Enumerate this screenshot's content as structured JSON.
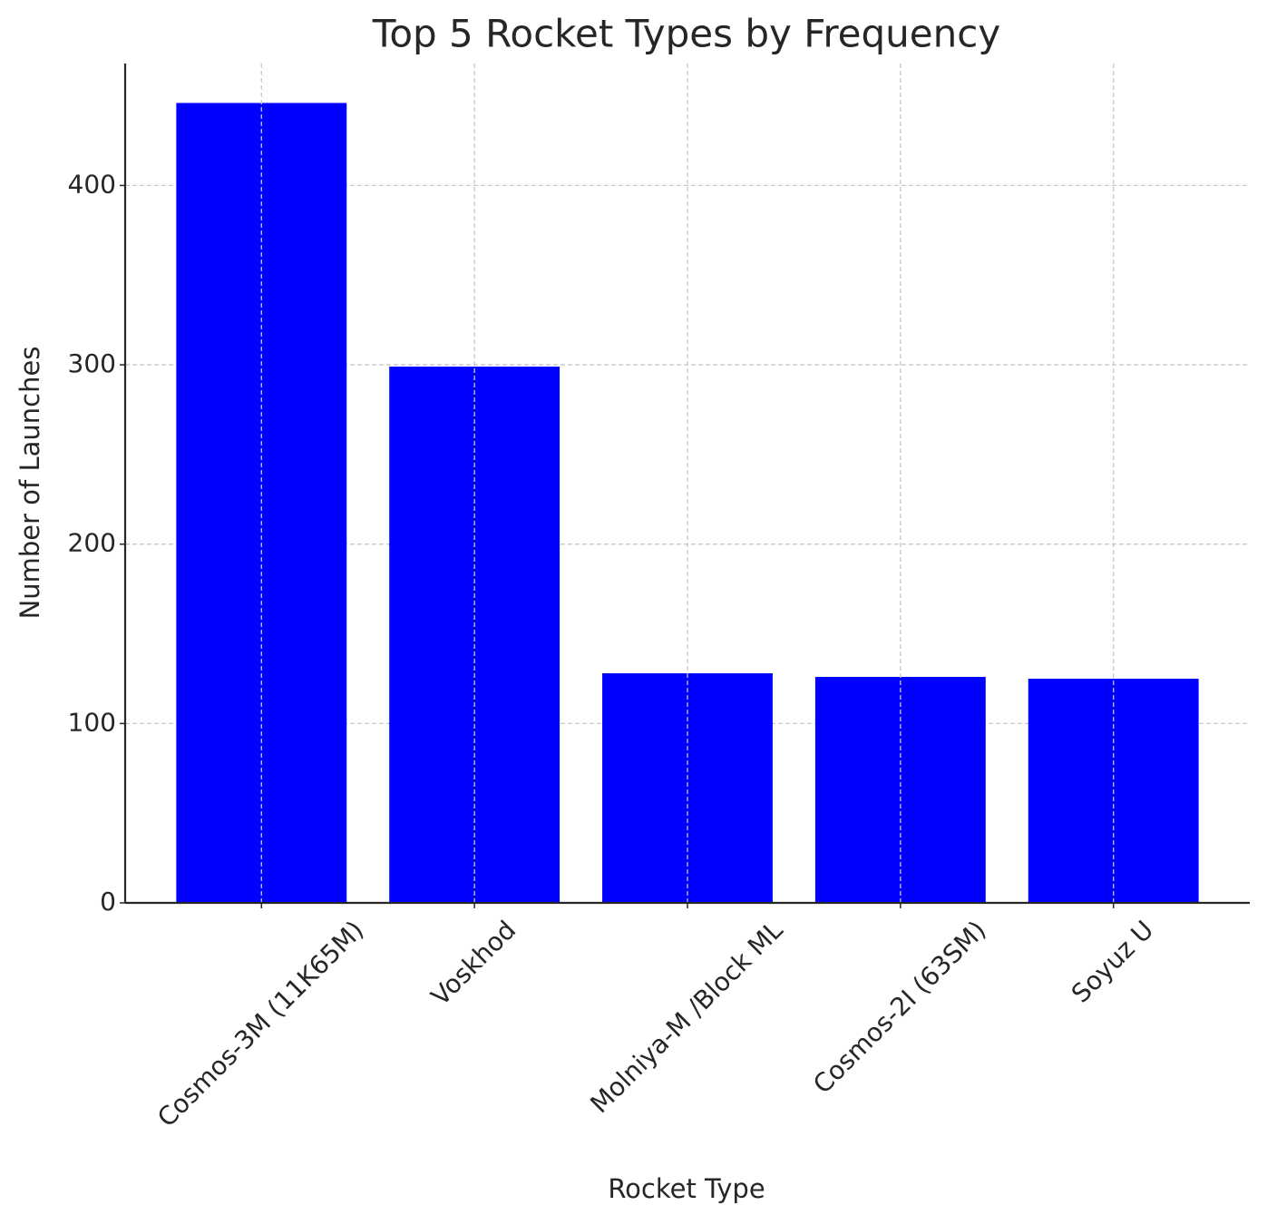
{
  "chart_data": {
    "type": "bar",
    "title": "Top 5 Rocket Types by Frequency",
    "x_label": "Rocket Type",
    "y_label": "Number of Launches",
    "categories": [
      "Cosmos-3M (11K65M)",
      "Voskhod",
      "Molniya-M /Block ML",
      "Cosmos-2I (63SM)",
      "Soyuz U"
    ],
    "values": [
      446,
      299,
      128,
      126,
      125
    ],
    "color": "#0000ff",
    "ylim": [
      0,
      468
    ],
    "yticks": [
      0,
      100,
      200,
      300,
      400
    ],
    "grid": true
  }
}
